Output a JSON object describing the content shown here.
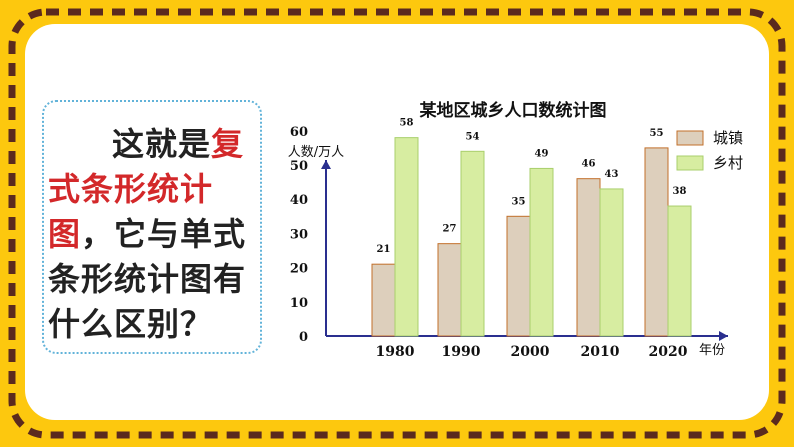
{
  "callout": {
    "pre": "这就是",
    "highlight": "复式条形统计图",
    "post": "，它与单式条形统计图有什么区别？"
  },
  "colors": {
    "background": "#FDC80E",
    "border_dash": "#5B2A1E",
    "callout_border": "#62B3D9",
    "highlight": "#D3282A",
    "urban": "#DDCFBC",
    "urban_border": "#C26F2A",
    "rural": "#D7EDA1",
    "rural_border": "#A9CF6C",
    "axis": "#2A2F8F"
  },
  "chart_data": {
    "type": "bar",
    "title": "某地区城乡人口数统计图",
    "ylabel": "人数/万人",
    "xlabel": "年份",
    "categories": [
      "1980",
      "1990",
      "2000",
      "2010",
      "2020"
    ],
    "series": [
      {
        "name": "城镇",
        "values": [
          21,
          27,
          35,
          46,
          55
        ]
      },
      {
        "name": "乡村",
        "values": [
          58,
          54,
          49,
          43,
          38
        ]
      }
    ],
    "yticks": [
      0,
      10,
      20,
      30,
      40,
      50,
      60
    ],
    "ylim": [
      0,
      60
    ],
    "legend": "top-right"
  }
}
